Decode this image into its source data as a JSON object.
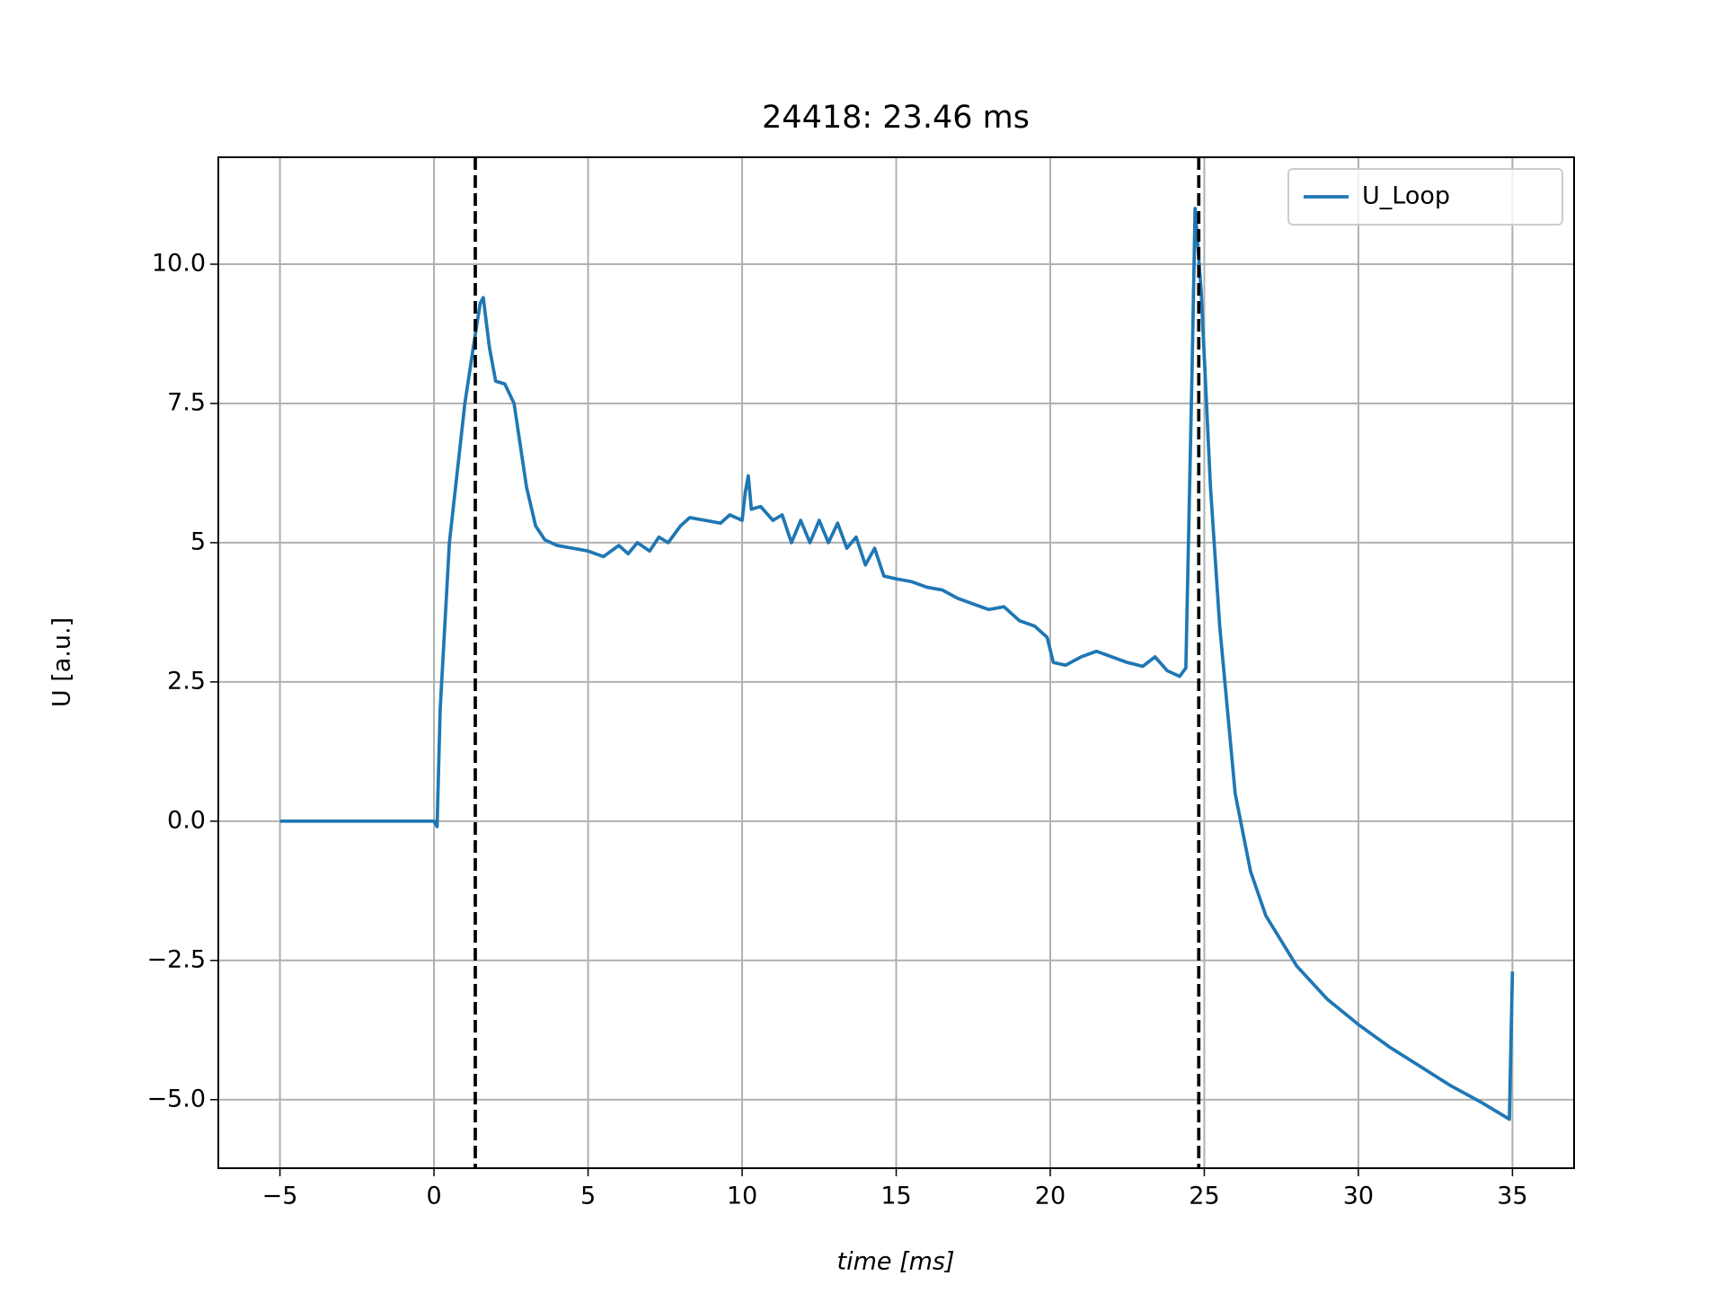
{
  "chart_data": {
    "type": "line",
    "title": "24418: 23.46 ms",
    "xlabel": "time [ms]",
    "ylabel": "U [a.u.]",
    "x": [
      -5,
      0,
      0.1,
      0.2,
      0.5,
      1.0,
      1.3,
      1.5,
      1.6,
      1.8,
      2.0,
      2.3,
      2.6,
      3.0,
      3.3,
      3.6,
      4.0,
      4.5,
      5.0,
      5.5,
      6.0,
      6.3,
      6.6,
      7.0,
      7.3,
      7.6,
      8.0,
      8.3,
      8.8,
      9.3,
      9.6,
      10.0,
      10.1,
      10.2,
      10.3,
      10.6,
      11.0,
      11.3,
      11.6,
      11.9,
      12.2,
      12.5,
      12.8,
      13.1,
      13.4,
      13.7,
      14.0,
      14.3,
      14.6,
      15.0,
      15.5,
      16.0,
      16.5,
      17.0,
      17.5,
      18.0,
      18.5,
      19.0,
      19.5,
      19.9,
      20.1,
      20.5,
      21.0,
      21.5,
      22.0,
      22.5,
      23.0,
      23.4,
      23.8,
      24.2,
      24.4,
      24.6,
      24.7,
      24.9,
      25.2,
      25.5,
      26.0,
      26.5,
      27.0,
      28.0,
      29.0,
      30.0,
      31.0,
      32.0,
      33.0,
      34.0,
      34.9,
      35.0
    ],
    "series": [
      {
        "name": "U_Loop",
        "color": "#1f77b4",
        "values": [
          0,
          0,
          -0.1,
          2.0,
          5.0,
          7.5,
          8.6,
          9.3,
          9.4,
          8.5,
          7.9,
          7.85,
          7.5,
          6.0,
          5.3,
          5.05,
          4.95,
          4.9,
          4.85,
          4.75,
          4.95,
          4.8,
          5.0,
          4.85,
          5.1,
          5.0,
          5.3,
          5.45,
          5.4,
          5.35,
          5.5,
          5.4,
          5.9,
          6.2,
          5.6,
          5.65,
          5.4,
          5.5,
          5.0,
          5.4,
          5.0,
          5.4,
          5.0,
          5.35,
          4.9,
          5.1,
          4.6,
          4.9,
          4.4,
          4.35,
          4.3,
          4.2,
          4.15,
          4.0,
          3.9,
          3.8,
          3.85,
          3.6,
          3.5,
          3.3,
          2.85,
          2.8,
          2.95,
          3.05,
          2.95,
          2.85,
          2.78,
          2.95,
          2.7,
          2.6,
          2.75,
          8.0,
          11.0,
          9.5,
          6.0,
          3.5,
          0.5,
          -0.9,
          -1.7,
          -2.6,
          -3.2,
          -3.65,
          -4.05,
          -4.4,
          -4.75,
          -5.05,
          -5.35,
          -2.7
        ]
      }
    ],
    "vlines": [
      1.34,
      24.82
    ],
    "xlim": [
      -7,
      37
    ],
    "xticks": [
      {
        "value": -5,
        "label": "−5"
      },
      0,
      5,
      10,
      15,
      20,
      25,
      30,
      35
    ],
    "ylim": [
      -6.23,
      11.92
    ],
    "yticks": [
      {
        "value": -5,
        "label": "−5.0"
      },
      {
        "value": -2.5,
        "label": "−2.5"
      },
      {
        "value": 0,
        "label": "0.0"
      },
      2.5,
      5,
      7.5,
      {
        "value": 10,
        "label": "10.0"
      }
    ],
    "grid": true,
    "legend": "upper right"
  }
}
